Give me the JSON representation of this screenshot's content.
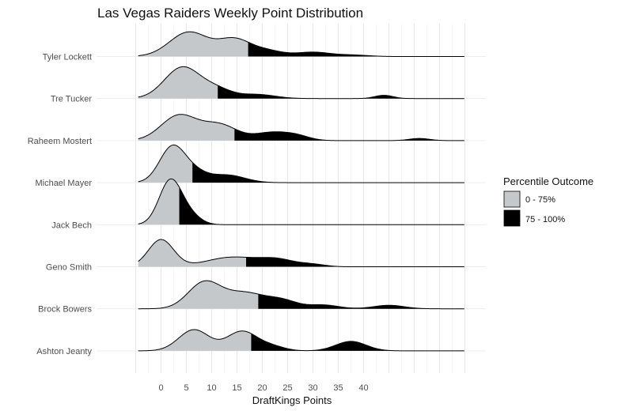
{
  "chart_data": {
    "type": "area",
    "title": "Las Vegas Raiders Weekly Point Distribution",
    "xlabel": "DraftKings Points",
    "ylabel": "",
    "xlim": [
      -5,
      60
    ],
    "x_ticks": [
      0,
      5,
      10,
      15,
      20,
      25,
      30,
      35,
      40
    ],
    "grid": true,
    "legend": {
      "title": "Percentile Outcome",
      "position": "right",
      "entries": [
        {
          "label": "0 - 75%",
          "color": "#c4c8ca"
        },
        {
          "label": "75 - 100%",
          "color": "#000000"
        }
      ]
    },
    "series": [
      {
        "name": "Tyler Lockett",
        "x_min": -4.5,
        "x_max": 60,
        "p75": 17.2,
        "peaks": [
          [
            5.5,
            0.9,
            3.8
          ],
          [
            14.5,
            0.62,
            3.2
          ],
          [
            21,
            0.2,
            3
          ],
          [
            30,
            0.16,
            3.5
          ],
          [
            38,
            0.05,
            3
          ]
        ]
      },
      {
        "name": "Tre Tucker",
        "x_min": -4.5,
        "x_max": 60,
        "p75": 11.2,
        "peaks": [
          [
            4.2,
            1.15,
            3.5
          ],
          [
            11,
            0.32,
            3
          ],
          [
            19,
            0.15,
            3.5
          ],
          [
            44,
            0.12,
            1.8
          ]
        ]
      },
      {
        "name": "Raheem Mostert",
        "x_min": -4.5,
        "x_max": 60,
        "p75": 14.5,
        "peaks": [
          [
            3.5,
            0.92,
            3.5
          ],
          [
            11.5,
            0.58,
            3.5
          ],
          [
            22,
            0.3,
            3.5
          ],
          [
            27,
            0.13,
            2.5
          ],
          [
            51,
            0.08,
            2
          ]
        ]
      },
      {
        "name": "Michael Mayer",
        "x_min": -4.5,
        "x_max": 60,
        "p75": 6.2,
        "peaks": [
          [
            2.2,
            1.3,
            2.5
          ],
          [
            6.5,
            0.35,
            2.5
          ],
          [
            13,
            0.28,
            3.5
          ]
        ]
      },
      {
        "name": "Jack Bech",
        "x_min": -4.5,
        "x_max": 60,
        "p75": 3.6,
        "peaks": [
          [
            1.8,
            1.6,
            2.2
          ],
          [
            5.5,
            0.35,
            2.2
          ]
        ]
      },
      {
        "name": "Geno Smith",
        "x_min": -4.5,
        "x_max": 60,
        "p75": 16.8,
        "peaks": [
          [
            0,
            1.0,
            2.5
          ],
          [
            14,
            0.35,
            5
          ],
          [
            23,
            0.25,
            3.5
          ],
          [
            30,
            0.08,
            2.5
          ]
        ]
      },
      {
        "name": "Brock Bowers",
        "x_min": -4.5,
        "x_max": 60,
        "p75": 19.2,
        "peaks": [
          [
            8.5,
            0.95,
            3.2
          ],
          [
            16.5,
            0.58,
            4
          ],
          [
            24,
            0.28,
            3
          ],
          [
            32,
            0.14,
            3
          ],
          [
            45,
            0.13,
            3
          ]
        ]
      },
      {
        "name": "Ashton Jeanty",
        "x_min": -4.5,
        "x_max": 60,
        "p75": 17.8,
        "peaks": [
          [
            6.5,
            0.78,
            3
          ],
          [
            16,
            0.72,
            3
          ],
          [
            22,
            0.15,
            2.5
          ],
          [
            37.5,
            0.35,
            3
          ]
        ]
      }
    ]
  }
}
